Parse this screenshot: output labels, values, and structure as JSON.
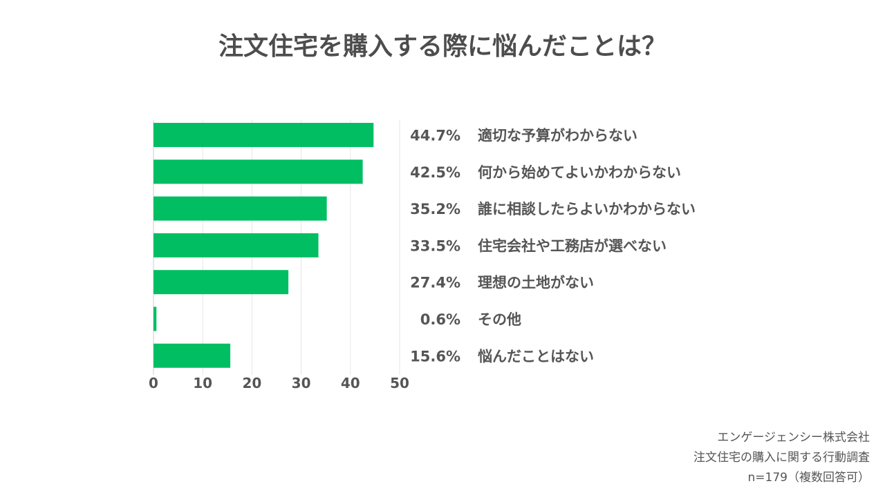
{
  "title": "注文住宅を購入する際に悩んだことは？",
  "chart_data": {
    "type": "bar",
    "orientation": "horizontal",
    "categories": [
      "適切な予算がわからない",
      "何から始めてよいかわからない",
      "誰に相談したらよいかわからない",
      "住宅会社や工務店が選べない",
      "理想の土地がない",
      "その他",
      "悩んだことはない"
    ],
    "values": [
      44.7,
      42.5,
      35.2,
      33.5,
      27.4,
      0.6,
      15.6
    ],
    "value_labels": [
      "44.7%",
      "42.5%",
      "35.2%",
      "33.5%",
      "27.4%",
      "0.6%",
      "15.6%"
    ],
    "xlim": [
      0,
      50
    ],
    "xticks": [
      "0",
      "10",
      "20",
      "30",
      "40",
      "50"
    ],
    "grid": true,
    "bar_color": "#00be61"
  },
  "source": {
    "line1": "エンゲージェンシー株式会社",
    "line2": "注文住宅の購入に関する行動調査",
    "line3": "n=179（複数回答可）"
  }
}
